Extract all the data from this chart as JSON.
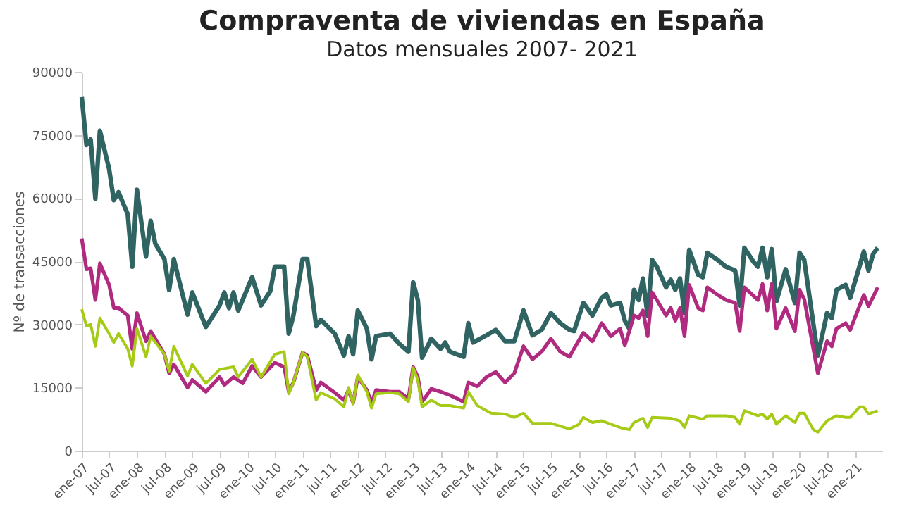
{
  "chart_data": {
    "type": "line",
    "title": "Compraventa de viviendas en España",
    "subtitle": "Datos mensuales 2007- 2021",
    "ylabel": "Nº de transacciones",
    "ylim": [
      0,
      90000
    ],
    "yticks": [
      0,
      15000,
      30000,
      45000,
      60000,
      75000,
      90000
    ],
    "xlim": [
      "2007-01",
      "2021-07"
    ],
    "xticks": [
      {
        "value": "2007-01",
        "label": "ene-07"
      },
      {
        "value": "2007-07",
        "label": "jul-07"
      },
      {
        "value": "2008-01",
        "label": "ene-08"
      },
      {
        "value": "2008-07",
        "label": "jul-08"
      },
      {
        "value": "2009-01",
        "label": "ene-09"
      },
      {
        "value": "2009-07",
        "label": "jul-09"
      },
      {
        "value": "2010-01",
        "label": "ene-10"
      },
      {
        "value": "2010-07",
        "label": "jul-10"
      },
      {
        "value": "2011-01",
        "label": "ene-11"
      },
      {
        "value": "2011-07",
        "label": "jul-11"
      },
      {
        "value": "2012-01",
        "label": "ene-12"
      },
      {
        "value": "2012-07",
        "label": "jul-12"
      },
      {
        "value": "2013-01",
        "label": "ene-13"
      },
      {
        "value": "2013-07",
        "label": "jul-13"
      },
      {
        "value": "2014-01",
        "label": "ene-14"
      },
      {
        "value": "2014-07",
        "label": "jul-14"
      },
      {
        "value": "2015-01",
        "label": "ene-15"
      },
      {
        "value": "2015-07",
        "label": "jul-15"
      },
      {
        "value": "2016-01",
        "label": "ene-16"
      },
      {
        "value": "2016-07",
        "label": "jul-16"
      },
      {
        "value": "2017-01",
        "label": "ene-17"
      },
      {
        "value": "2017-07",
        "label": "jul-17"
      },
      {
        "value": "2018-01",
        "label": "ene-18"
      },
      {
        "value": "2018-07",
        "label": "jul-18"
      },
      {
        "value": "2019-01",
        "label": "ene-19"
      },
      {
        "value": "2019-07",
        "label": "jul-19"
      },
      {
        "value": "2020-01",
        "label": "ene-20"
      },
      {
        "value": "2020-07",
        "label": "jul-20"
      },
      {
        "value": "2021-01",
        "label": "ene-21"
      }
    ],
    "grid": false,
    "marker": "none",
    "line_style": "solid",
    "series": [
      {
        "color": "#2f6462",
        "x": [
          "2007-01",
          "2007-02",
          "2007-03",
          "2007-04",
          "2007-05",
          "2007-07",
          "2007-08",
          "2007-09",
          "2007-11",
          "2007-12",
          "2008-01",
          "2008-03",
          "2008-04",
          "2008-05",
          "2008-07",
          "2008-08",
          "2008-09",
          "2008-12",
          "2009-01",
          "2009-04",
          "2009-07",
          "2009-08",
          "2009-09",
          "2009-10",
          "2009-11",
          "2010-02",
          "2010-04",
          "2010-06",
          "2010-07",
          "2010-09",
          "2010-10",
          "2010-11",
          "2011-01",
          "2011-02",
          "2011-04",
          "2011-05",
          "2011-08",
          "2011-10",
          "2011-11",
          "2011-12",
          "2012-01",
          "2012-03",
          "2012-04",
          "2012-05",
          "2012-08",
          "2012-10",
          "2012-12",
          "2013-01",
          "2013-02",
          "2013-03",
          "2013-05",
          "2013-07",
          "2013-08",
          "2013-09",
          "2013-12",
          "2014-01",
          "2014-02",
          "2014-05",
          "2014-07",
          "2014-09",
          "2014-11",
          "2015-01",
          "2015-03",
          "2015-05",
          "2015-07",
          "2015-09",
          "2015-11",
          "2015-12",
          "2016-02",
          "2016-04",
          "2016-06",
          "2016-07",
          "2016-08",
          "2016-10",
          "2016-11",
          "2016-12",
          "2017-01",
          "2017-02",
          "2017-03",
          "2017-04",
          "2017-05",
          "2017-06",
          "2017-08",
          "2017-09",
          "2017-10",
          "2017-11",
          "2017-12",
          "2018-01",
          "2018-03",
          "2018-04",
          "2018-05",
          "2018-07",
          "2018-09",
          "2018-11",
          "2018-12",
          "2019-01",
          "2019-03",
          "2019-04",
          "2019-05",
          "2019-06",
          "2019-07",
          "2019-08",
          "2019-10",
          "2019-12",
          "2020-01",
          "2020-02",
          "2020-05",
          "2020-07",
          "2020-08",
          "2020-09",
          "2020-11",
          "2020-12",
          "2021-03",
          "2021-04",
          "2021-05",
          "2021-06"
        ],
        "values": [
          84000,
          72600,
          73900,
          59900,
          76000,
          66900,
          59500,
          61400,
          56200,
          43700,
          62000,
          46100,
          54600,
          49200,
          45500,
          38200,
          45500,
          32300,
          37600,
          29400,
          34500,
          37600,
          33900,
          37600,
          33300,
          41200,
          34500,
          37900,
          43700,
          43700,
          27800,
          32100,
          45500,
          45500,
          29600,
          31100,
          27800,
          22600,
          27200,
          22900,
          33300,
          29000,
          21700,
          27200,
          27800,
          25400,
          23500,
          40000,
          35800,
          22100,
          26600,
          24200,
          25700,
          23500,
          22300,
          30300,
          25700,
          27400,
          28700,
          26000,
          26000,
          33300,
          27400,
          28700,
          32700,
          30300,
          28700,
          28400,
          35100,
          32100,
          36300,
          37200,
          34500,
          35100,
          30900,
          29000,
          38200,
          35800,
          40900,
          32100,
          45300,
          43700,
          38800,
          40600,
          38200,
          40900,
          32700,
          47700,
          41800,
          41200,
          47000,
          45500,
          43700,
          42800,
          34500,
          48200,
          44900,
          43700,
          48200,
          41200,
          47900,
          35500,
          43100,
          35100,
          47000,
          45300,
          22600,
          32700,
          31500,
          38200,
          39400,
          36300,
          47300,
          42800,
          46700,
          48200
        ]
      },
      {
        "color": "#b02a80",
        "x": [
          "2007-01",
          "2007-02",
          "2007-03",
          "2007-04",
          "2007-05",
          "2007-07",
          "2007-08",
          "2007-09",
          "2007-11",
          "2007-12",
          "2008-01",
          "2008-03",
          "2008-04",
          "2008-07",
          "2008-08",
          "2008-09",
          "2008-12",
          "2009-01",
          "2009-04",
          "2009-07",
          "2009-08",
          "2009-10",
          "2009-12",
          "2010-02",
          "2010-04",
          "2010-07",
          "2010-09",
          "2010-10",
          "2010-11",
          "2011-01",
          "2011-02",
          "2011-04",
          "2011-05",
          "2011-08",
          "2011-10",
          "2011-11",
          "2011-12",
          "2012-01",
          "2012-03",
          "2012-04",
          "2012-05",
          "2012-08",
          "2012-10",
          "2012-12",
          "2013-01",
          "2013-02",
          "2013-03",
          "2013-05",
          "2013-07",
          "2013-09",
          "2013-12",
          "2014-01",
          "2014-03",
          "2014-05",
          "2014-07",
          "2014-09",
          "2014-11",
          "2015-01",
          "2015-03",
          "2015-05",
          "2015-07",
          "2015-09",
          "2015-11",
          "2015-12",
          "2016-02",
          "2016-04",
          "2016-06",
          "2016-08",
          "2016-10",
          "2016-11",
          "2016-12",
          "2017-01",
          "2017-02",
          "2017-03",
          "2017-04",
          "2017-05",
          "2017-06",
          "2017-08",
          "2017-09",
          "2017-10",
          "2017-11",
          "2017-12",
          "2018-01",
          "2018-03",
          "2018-04",
          "2018-05",
          "2018-07",
          "2018-09",
          "2018-11",
          "2018-12",
          "2019-01",
          "2019-04",
          "2019-05",
          "2019-06",
          "2019-07",
          "2019-08",
          "2019-10",
          "2019-12",
          "2020-01",
          "2020-02",
          "2020-05",
          "2020-07",
          "2020-08",
          "2020-09",
          "2020-11",
          "2020-12",
          "2021-03",
          "2021-04",
          "2021-06"
        ],
        "values": [
          50400,
          43100,
          43300,
          35800,
          44500,
          39400,
          33900,
          33900,
          32100,
          24200,
          32700,
          26000,
          28400,
          22900,
          18400,
          20500,
          15000,
          16800,
          14000,
          17500,
          15600,
          17500,
          16000,
          20100,
          17500,
          20900,
          19900,
          14000,
          16200,
          23300,
          22600,
          14400,
          16200,
          13800,
          12000,
          14400,
          11300,
          17500,
          14400,
          11300,
          14400,
          14000,
          14000,
          12300,
          19900,
          17500,
          11600,
          14700,
          14000,
          13200,
          11600,
          16200,
          15300,
          17500,
          18700,
          16200,
          18400,
          24800,
          21700,
          23500,
          26600,
          23500,
          22300,
          24200,
          28000,
          26000,
          30300,
          27200,
          29000,
          25000,
          28400,
          32100,
          31500,
          33300,
          27200,
          37600,
          35800,
          32100,
          33900,
          30900,
          33900,
          27200,
          39400,
          33900,
          33300,
          38800,
          37200,
          35800,
          35100,
          28400,
          38800,
          35800,
          39600,
          33300,
          39600,
          29000,
          33900,
          28400,
          38200,
          36000,
          18400,
          26000,
          24800,
          29000,
          30300,
          28700,
          37000,
          34300,
          38800
        ]
      },
      {
        "color": "#a6cb17",
        "x": [
          "2007-01",
          "2007-02",
          "2007-03",
          "2007-04",
          "2007-05",
          "2007-07",
          "2007-08",
          "2007-09",
          "2007-11",
          "2007-12",
          "2008-01",
          "2008-03",
          "2008-04",
          "2008-07",
          "2008-08",
          "2008-09",
          "2008-12",
          "2009-01",
          "2009-04",
          "2009-07",
          "2009-10",
          "2009-11",
          "2010-02",
          "2010-04",
          "2010-07",
          "2010-09",
          "2010-10",
          "2010-11",
          "2011-01",
          "2011-02",
          "2011-04",
          "2011-05",
          "2011-08",
          "2011-10",
          "2011-11",
          "2011-12",
          "2012-01",
          "2012-03",
          "2012-04",
          "2012-05",
          "2012-08",
          "2012-10",
          "2012-12",
          "2013-01",
          "2013-02",
          "2013-03",
          "2013-05",
          "2013-07",
          "2013-09",
          "2013-12",
          "2014-01",
          "2014-03",
          "2014-06",
          "2014-09",
          "2014-11",
          "2015-01",
          "2015-03",
          "2015-07",
          "2015-10",
          "2015-11",
          "2016-01",
          "2016-02",
          "2016-04",
          "2016-06",
          "2016-10",
          "2016-12",
          "2017-01",
          "2017-03",
          "2017-04",
          "2017-05",
          "2017-09",
          "2017-11",
          "2017-12",
          "2018-01",
          "2018-04",
          "2018-05",
          "2018-09",
          "2018-11",
          "2018-12",
          "2019-01",
          "2019-04",
          "2019-05",
          "2019-06",
          "2019-07",
          "2019-08",
          "2019-10",
          "2019-12",
          "2020-01",
          "2020-02",
          "2020-04",
          "2020-05",
          "2020-07",
          "2020-09",
          "2020-11",
          "2020-12",
          "2021-02",
          "2021-03",
          "2021-04",
          "2021-06"
        ],
        "values": [
          33600,
          29600,
          30000,
          24800,
          31500,
          27800,
          25700,
          27800,
          24200,
          20100,
          29000,
          22300,
          27200,
          22900,
          18900,
          24800,
          17700,
          20500,
          16000,
          19300,
          19900,
          17500,
          21700,
          17500,
          22900,
          23500,
          13500,
          16200,
          23300,
          22300,
          12000,
          13800,
          12300,
          10400,
          15000,
          11100,
          18000,
          14000,
          10100,
          13500,
          13800,
          13500,
          11600,
          19700,
          16800,
          10400,
          12000,
          10700,
          10700,
          10100,
          14000,
          10700,
          8900,
          8700,
          7900,
          8900,
          6500,
          6500,
          5500,
          5200,
          6200,
          7900,
          6700,
          7100,
          5500,
          5000,
          6700,
          7700,
          5500,
          7900,
          7700,
          7100,
          5500,
          8300,
          7500,
          8300,
          8300,
          7900,
          6300,
          9500,
          8300,
          8700,
          7500,
          8700,
          6300,
          8300,
          6700,
          8900,
          8900,
          5000,
          4400,
          7100,
          8300,
          7900,
          7900,
          10400,
          10400,
          8700,
          9500
        ]
      }
    ]
  }
}
